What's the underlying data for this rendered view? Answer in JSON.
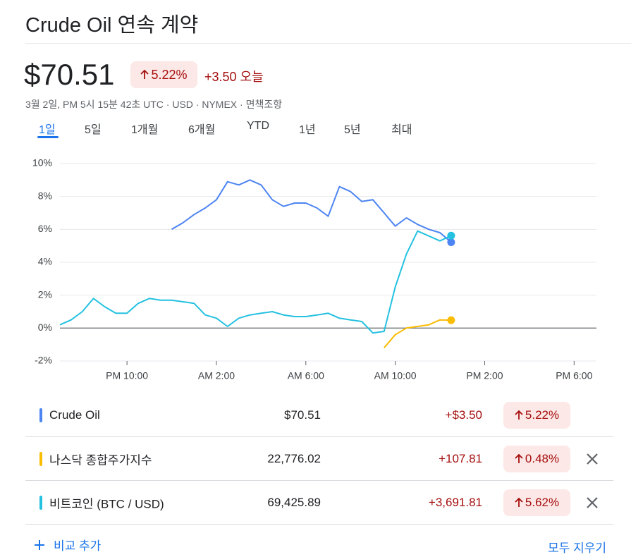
{
  "header": {
    "title": "Crude Oil 연속 계약",
    "price": "$70.51",
    "change_percent": "5.22%",
    "change": "+3.50 오늘",
    "info": "3월 2일, PM 5시 15분 42초 UTC · USD · NYMEX · 면책조항"
  },
  "tabs": {
    "items": [
      "1일",
      "5일",
      "1개월",
      "6개월",
      "YTD",
      "1년",
      "5년",
      "최대"
    ],
    "active": 0
  },
  "chart_data": {
    "type": "line",
    "x": [
      19,
      19.5,
      20,
      20.5,
      21,
      21.5,
      22,
      22.5,
      23,
      23.5,
      24,
      24.5,
      25,
      25.5,
      26,
      26.5,
      27,
      27.5,
      28,
      28.5,
      29,
      29.5,
      30,
      30.5,
      31,
      31.5,
      32,
      32.5,
      33,
      33.5,
      34,
      34.5,
      35,
      35.5,
      36,
      36.5
    ],
    "series": [
      {
        "name": "Crude Oil",
        "color": "#4c84f2",
        "values": [
          null,
          null,
          null,
          null,
          null,
          null,
          null,
          null,
          null,
          null,
          6.0,
          6.4,
          6.9,
          7.3,
          7.8,
          8.9,
          8.7,
          9.0,
          8.7,
          7.8,
          7.4,
          7.6,
          7.6,
          7.3,
          6.8,
          8.6,
          8.3,
          7.7,
          7.8,
          7.0,
          6.2,
          6.7,
          6.3,
          6.0,
          5.8,
          5.22
        ]
      },
      {
        "name": "나스닥 종합주가지수",
        "color": "#fbbc04",
        "values": [
          null,
          null,
          null,
          null,
          null,
          null,
          null,
          null,
          null,
          null,
          null,
          null,
          null,
          null,
          null,
          null,
          null,
          null,
          null,
          null,
          null,
          null,
          null,
          null,
          null,
          null,
          null,
          null,
          null,
          -1.2,
          -0.4,
          0.0,
          0.1,
          0.2,
          0.5,
          0.48
        ]
      },
      {
        "name": "비트코인 (BTC / USD)",
        "color": "#24c1e0",
        "values": [
          0.2,
          0.5,
          1.0,
          1.8,
          1.3,
          0.9,
          0.9,
          1.5,
          1.8,
          1.7,
          1.7,
          1.6,
          1.5,
          0.8,
          0.6,
          0.1,
          0.6,
          0.8,
          0.9,
          1.0,
          0.8,
          0.7,
          0.7,
          0.8,
          0.9,
          0.6,
          0.5,
          0.4,
          -0.3,
          -0.2,
          2.5,
          4.5,
          5.9,
          5.6,
          5.3,
          5.62
        ]
      }
    ],
    "xlim": [
      19,
      43
    ],
    "xticks": [
      {
        "value": 22,
        "label": "PM 10:00"
      },
      {
        "value": 26,
        "label": "AM 2:00"
      },
      {
        "value": 30,
        "label": "AM 6:00"
      },
      {
        "value": 34,
        "label": "AM 10:00"
      },
      {
        "value": 38,
        "label": "PM 2:00"
      },
      {
        "value": 42,
        "label": "PM 6:00"
      }
    ],
    "ylim": [
      -2,
      10
    ],
    "yticks": [
      {
        "value": -2,
        "label": "-2%"
      },
      {
        "value": 0,
        "label": "0%"
      },
      {
        "value": 2,
        "label": "2%"
      },
      {
        "value": 4,
        "label": "4%"
      },
      {
        "value": 6,
        "label": "6%"
      },
      {
        "value": 8,
        "label": "8%"
      },
      {
        "value": 10,
        "label": "10%"
      }
    ],
    "grid": true
  },
  "comparison": {
    "rows": [
      {
        "name": "Crude Oil",
        "price": "$70.51",
        "change": "+$3.50",
        "change_percent": "5.22%",
        "removable": false
      },
      {
        "name": "나스닥 종합주가지수",
        "price": "22,776.02",
        "change": "+107.81",
        "change_percent": "0.48%",
        "removable": true
      },
      {
        "name": "비트코인 (BTC / USD)",
        "price": "69,425.89",
        "change": "+3,691.81",
        "change_percent": "5.62%",
        "removable": true
      }
    ],
    "add_button": "비교 추가",
    "clear_button": "모두 지우기"
  }
}
